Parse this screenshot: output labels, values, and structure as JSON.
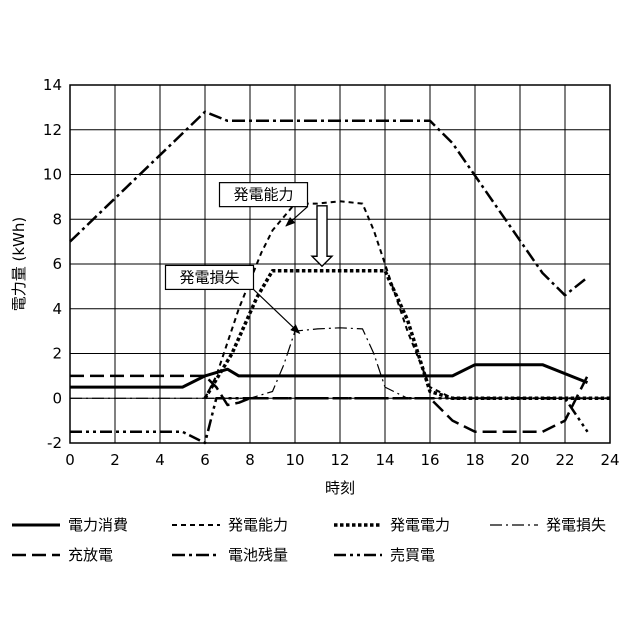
{
  "chart_data": {
    "type": "line",
    "xlabel": "時刻",
    "ylabel": "電力量 (kWh)",
    "xlim": [
      0,
      24
    ],
    "ylim": [
      -2,
      14
    ],
    "xticks": [
      0,
      2,
      4,
      6,
      8,
      10,
      12,
      14,
      16,
      18,
      20,
      22,
      24
    ],
    "yticks": [
      -2,
      0,
      2,
      4,
      6,
      8,
      10,
      12,
      14
    ],
    "grid": true,
    "legend_position": "bottom",
    "series": [
      {
        "name": "電力消費",
        "style": "solid-thick",
        "points": [
          [
            0,
            0.5
          ],
          [
            5,
            0.5
          ],
          [
            6,
            1.0
          ],
          [
            7,
            1.3
          ],
          [
            7.5,
            1.0
          ],
          [
            8,
            1.0
          ],
          [
            17,
            1.0
          ],
          [
            18,
            1.5
          ],
          [
            21,
            1.5
          ],
          [
            23,
            0.7
          ]
        ]
      },
      {
        "name": "発電能力",
        "style": "dash-short",
        "points": [
          [
            6,
            0
          ],
          [
            6.5,
            1.0
          ],
          [
            7.5,
            4.0
          ],
          [
            8.5,
            6.5
          ],
          [
            9,
            7.5
          ],
          [
            10,
            8.7
          ],
          [
            11,
            8.7
          ],
          [
            12,
            8.8
          ],
          [
            13,
            8.7
          ],
          [
            13.5,
            7.5
          ],
          [
            14,
            6.0
          ],
          [
            15,
            3.0
          ],
          [
            16,
            0.5
          ],
          [
            17,
            0
          ],
          [
            24,
            0
          ]
        ]
      },
      {
        "name": "発電電力",
        "style": "dotted-thick",
        "points": [
          [
            6,
            0
          ],
          [
            7.2,
            2.0
          ],
          [
            8.3,
            4.5
          ],
          [
            9,
            5.7
          ],
          [
            14,
            5.7
          ],
          [
            15,
            3.5
          ],
          [
            16,
            0.3
          ],
          [
            17,
            0
          ],
          [
            24,
            0
          ]
        ]
      },
      {
        "name": "発電損失",
        "style": "dashdot-thin",
        "points": [
          [
            0,
            0
          ],
          [
            8,
            0
          ],
          [
            9,
            0.3
          ],
          [
            9.5,
            1.5
          ],
          [
            10,
            3.0
          ],
          [
            11,
            3.1
          ],
          [
            12,
            3.15
          ],
          [
            13,
            3.1
          ],
          [
            13.5,
            2.0
          ],
          [
            14,
            0.5
          ],
          [
            15,
            0
          ],
          [
            24,
            0
          ]
        ]
      },
      {
        "name": "充放電",
        "style": "dash-long",
        "points": [
          [
            0,
            1.0
          ],
          [
            6,
            1.0
          ],
          [
            6.5,
            0.5
          ],
          [
            7,
            -0.3
          ],
          [
            7.5,
            -0.2
          ],
          [
            8,
            0
          ],
          [
            16,
            0
          ],
          [
            17,
            -1.0
          ],
          [
            18,
            -1.5
          ],
          [
            21,
            -1.5
          ],
          [
            22,
            -1.0
          ],
          [
            23,
            1.0
          ]
        ]
      },
      {
        "name": "電池残量",
        "style": "dashdot-thick",
        "points": [
          [
            0,
            7.0
          ],
          [
            6,
            12.8
          ],
          [
            7,
            12.4
          ],
          [
            16,
            12.4
          ],
          [
            17,
            11.4
          ],
          [
            21,
            5.6
          ],
          [
            22,
            4.6
          ],
          [
            23,
            5.4
          ]
        ]
      },
      {
        "name": "売買電",
        "style": "dashdotdot",
        "points": [
          [
            0,
            -1.5
          ],
          [
            5,
            -1.5
          ],
          [
            6,
            -2.0
          ],
          [
            6.5,
            0
          ],
          [
            8,
            0
          ],
          [
            22,
            0
          ],
          [
            23,
            -1.5
          ]
        ]
      }
    ],
    "annotations": [
      {
        "text": "発電能力",
        "x": 8.6,
        "y": 9.1
      },
      {
        "text": "発電損失",
        "x": 6.2,
        "y": 5.4
      }
    ]
  }
}
